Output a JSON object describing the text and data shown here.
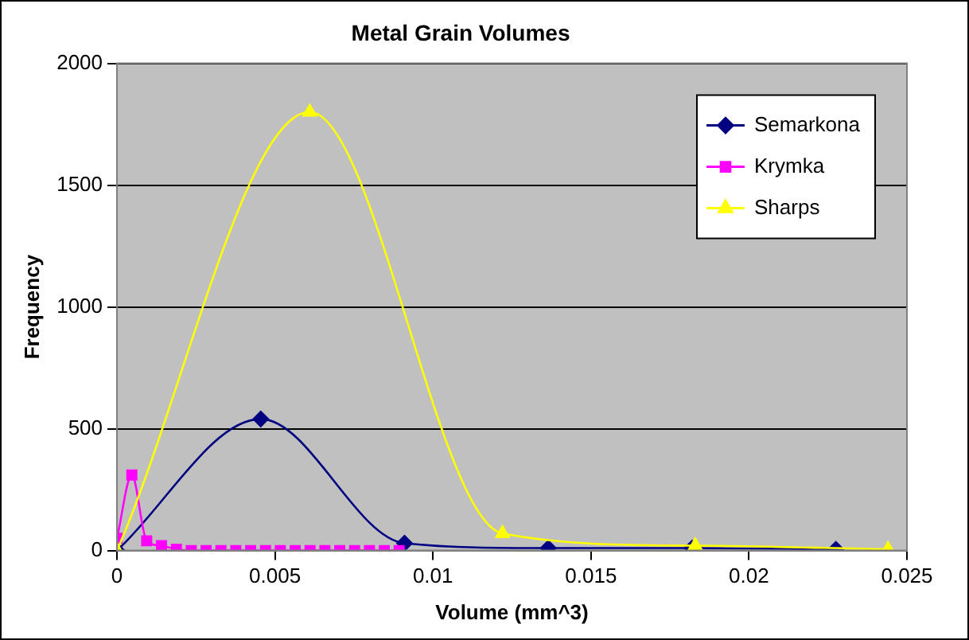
{
  "chart_data": {
    "type": "line",
    "title": "Metal Grain Volumes",
    "xlabel": "Volume (mm^3)",
    "ylabel": "Frequency",
    "xlim": [
      0,
      0.025
    ],
    "xticks": [
      0,
      0.005,
      0.01,
      0.015,
      0.02,
      0.025
    ],
    "ylim": [
      0,
      2000
    ],
    "yticks": [
      0,
      500,
      1000,
      1500,
      2000
    ],
    "grid": "y",
    "legend": "top right",
    "line_style": "solid",
    "series": [
      {
        "name": "Semarkona",
        "color": "#000080",
        "marker": "diamond",
        "x": [
          0,
          0.00455,
          0.0091,
          0.01365,
          0.0182,
          0.02275
        ],
        "values": [
          0,
          540,
          30,
          10,
          10,
          5
        ]
      },
      {
        "name": "Krymka",
        "color": "#ff00ff",
        "marker": "square",
        "x": [
          0,
          0.00047,
          0.00094,
          0.00141,
          0.00188,
          0.00235,
          0.00282,
          0.00329,
          0.00376,
          0.00423,
          0.0047,
          0.00517,
          0.00564,
          0.00611,
          0.00658,
          0.00705,
          0.00752,
          0.00799,
          0.00846,
          0.00893
        ],
        "values": [
          50,
          310,
          40,
          20,
          5,
          0,
          0,
          0,
          0,
          0,
          0,
          0,
          0,
          0,
          0,
          0,
          0,
          0,
          0,
          0
        ]
      },
      {
        "name": "Sharps",
        "color": "#ffff00",
        "marker": "triangle",
        "x": [
          0,
          0.0061,
          0.0122,
          0.0183,
          0.0244
        ],
        "values": [
          0,
          1800,
          70,
          20,
          5
        ]
      }
    ]
  }
}
